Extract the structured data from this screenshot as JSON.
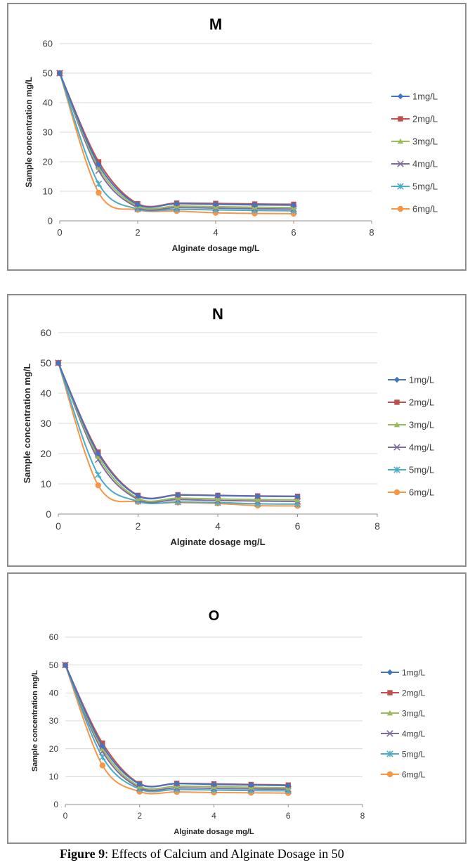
{
  "caption": {
    "label": "Figure 9",
    "text": ": Effects of Calcium and Alginate Dosage in 50"
  },
  "colors": {
    "1mg/L": "#4472c4",
    "2mg/L": "#c0504d",
    "3mg/L": "#9bbb59",
    "4mg/L": "#7f6aa3",
    "5mg/L": "#4bacc6",
    "6mg/L": "#f79646"
  },
  "chart_data": [
    {
      "type": "line",
      "title": "M",
      "xlabel": "Alginate dosage mg/L",
      "ylabel": "Sample concentration mg/L",
      "xlim": [
        0,
        8
      ],
      "ylim": [
        0,
        60
      ],
      "xticks": [
        0,
        2,
        4,
        6,
        8
      ],
      "yticks": [
        0,
        10,
        20,
        30,
        40,
        50,
        60
      ],
      "grid": true,
      "legend": "right",
      "smooth": true,
      "x": [
        0,
        1,
        2,
        3,
        4,
        5,
        6
      ],
      "series": [
        {
          "name": "1mg/L",
          "marker": "diamond",
          "values": [
            50,
            19,
            5.5,
            5.8,
            5.6,
            5.4,
            5.3
          ]
        },
        {
          "name": "2mg/L",
          "marker": "square",
          "values": [
            50,
            20,
            5.8,
            6.0,
            5.9,
            5.7,
            5.6
          ]
        },
        {
          "name": "3mg/L",
          "marker": "triangle",
          "values": [
            50,
            18,
            5,
            5,
            4.8,
            4.6,
            4.5
          ]
        },
        {
          "name": "4mg/L",
          "marker": "x",
          "values": [
            50,
            17,
            4.5,
            4.5,
            4.3,
            4.1,
            4.0
          ]
        },
        {
          "name": "5mg/L",
          "marker": "star",
          "values": [
            50,
            12.5,
            4,
            3.9,
            3.7,
            3.5,
            3.4
          ]
        },
        {
          "name": "6mg/L",
          "marker": "circle",
          "values": [
            50,
            9.5,
            3.7,
            3.3,
            2.7,
            2.5,
            2.4
          ]
        }
      ]
    },
    {
      "type": "line",
      "title": "N",
      "xlabel": "Alginate dosage mg/L",
      "ylabel": "Sample concentration mg/L",
      "xlim": [
        0,
        8
      ],
      "ylim": [
        0,
        60
      ],
      "xticks": [
        0,
        2,
        4,
        6,
        8
      ],
      "yticks": [
        0,
        10,
        20,
        30,
        40,
        50,
        60
      ],
      "grid": true,
      "legend": "right",
      "smooth": true,
      "x": [
        0,
        1,
        2,
        3,
        4,
        5,
        6
      ],
      "series": [
        {
          "name": "1mg/L",
          "marker": "diamond",
          "values": [
            50,
            20,
            6,
            6.3,
            6.1,
            5.9,
            5.8
          ]
        },
        {
          "name": "2mg/L",
          "marker": "square",
          "values": [
            50,
            20.5,
            6.2,
            6.4,
            6.2,
            6.0,
            5.9
          ]
        },
        {
          "name": "3mg/L",
          "marker": "triangle",
          "values": [
            50,
            19,
            5.2,
            5.3,
            5.0,
            4.8,
            4.7
          ]
        },
        {
          "name": "4mg/L",
          "marker": "x",
          "values": [
            50,
            18,
            4.8,
            4.8,
            4.5,
            4.3,
            4.2
          ]
        },
        {
          "name": "5mg/L",
          "marker": "star",
          "values": [
            50,
            13,
            4.2,
            4.0,
            3.8,
            3.4,
            3.3
          ]
        },
        {
          "name": "6mg/L",
          "marker": "circle",
          "values": [
            50,
            9.5,
            4.0,
            3.8,
            3.5,
            2.8,
            2.7
          ]
        }
      ]
    },
    {
      "type": "line",
      "title": "O",
      "xlabel": "Alginate dosage mg/L",
      "ylabel": "Sample concentration mg/L",
      "xlim": [
        0,
        8
      ],
      "ylim": [
        0,
        60
      ],
      "xticks": [
        0,
        2,
        4,
        6,
        8
      ],
      "yticks": [
        0,
        10,
        20,
        30,
        40,
        50,
        60
      ],
      "grid": true,
      "legend": "right",
      "smooth": true,
      "x": [
        0,
        1,
        2,
        3,
        4,
        5,
        6
      ],
      "series": [
        {
          "name": "1mg/L",
          "marker": "diamond",
          "values": [
            50,
            21,
            7.3,
            7.5,
            7.2,
            7.0,
            6.8
          ]
        },
        {
          "name": "2mg/L",
          "marker": "square",
          "values": [
            50,
            22,
            7.5,
            7.6,
            7.4,
            7.2,
            7.0
          ]
        },
        {
          "name": "3mg/L",
          "marker": "triangle",
          "values": [
            50,
            20,
            6.5,
            6.6,
            6.4,
            6.2,
            6.0
          ]
        },
        {
          "name": "4mg/L",
          "marker": "x",
          "values": [
            50,
            19,
            6.0,
            6.0,
            5.8,
            5.6,
            5.5
          ]
        },
        {
          "name": "5mg/L",
          "marker": "star",
          "values": [
            50,
            17,
            5.5,
            5.4,
            5.2,
            5.0,
            4.9
          ]
        },
        {
          "name": "6mg/L",
          "marker": "circle",
          "values": [
            50,
            14,
            4.6,
            4.5,
            4.3,
            4.2,
            4.1
          ]
        }
      ]
    }
  ]
}
